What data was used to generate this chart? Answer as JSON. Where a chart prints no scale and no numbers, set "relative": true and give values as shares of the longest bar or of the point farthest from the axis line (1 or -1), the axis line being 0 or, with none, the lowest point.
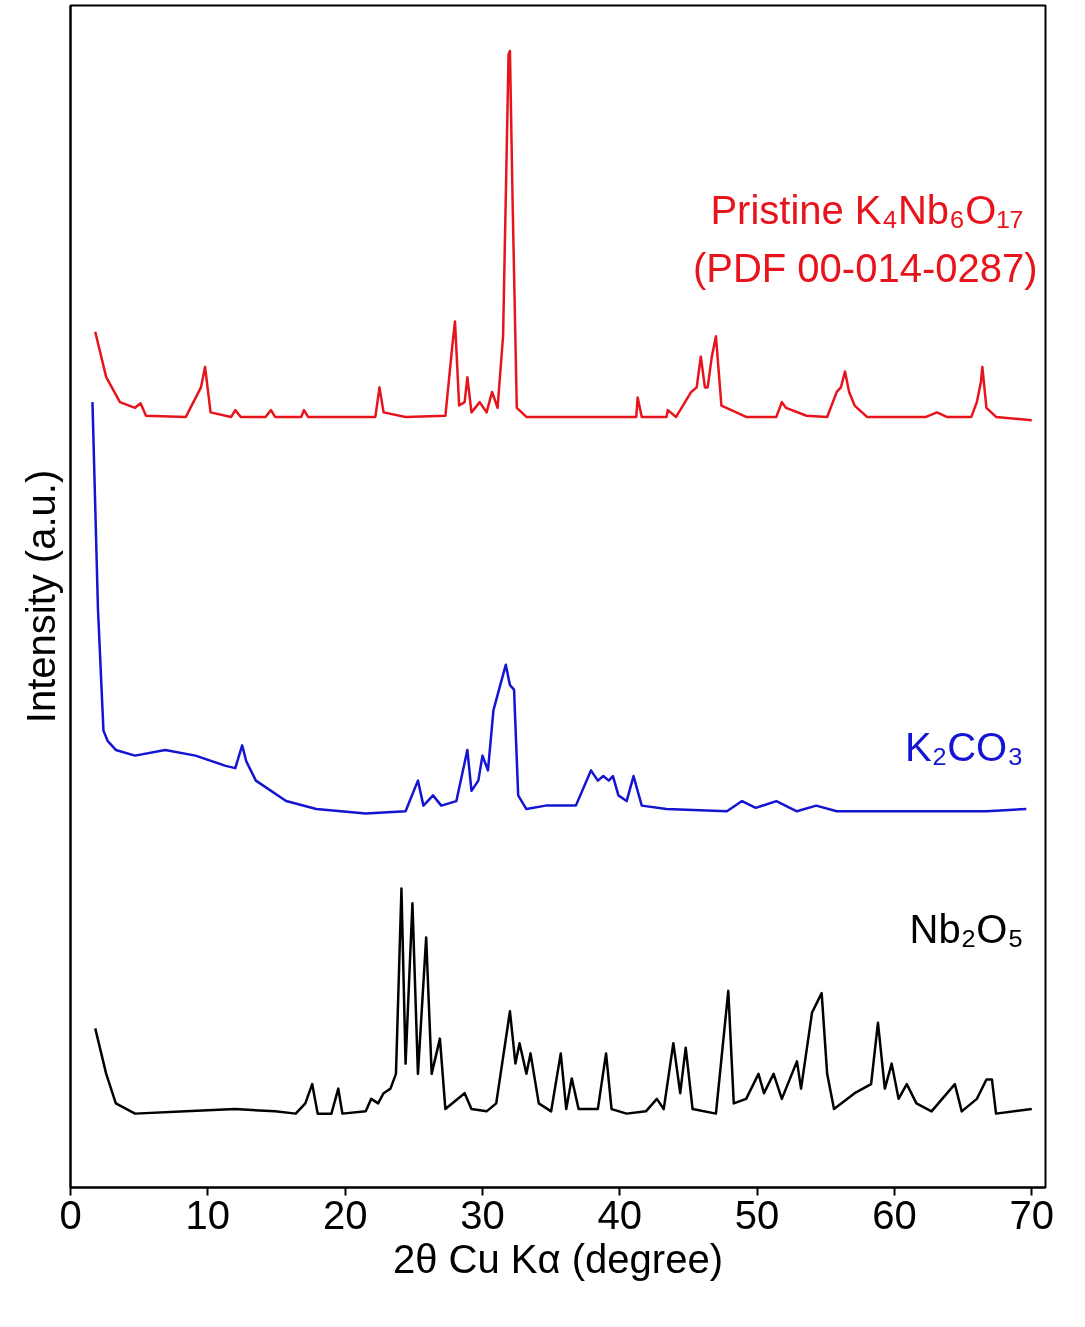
{
  "chart_data": {
    "type": "line",
    "relative": true,
    "xlabel": "2θ Cu Kα (degree)",
    "ylabel": "Intensity (a.u.)",
    "xlim": [
      0,
      71
    ],
    "xticks": [
      0,
      10,
      20,
      30,
      40,
      50,
      60,
      70
    ],
    "grid": false,
    "tick_labels": "x",
    "marker": "none",
    "line_style": "solid",
    "annotations": [
      "(PDF 00-014-0287)"
    ],
    "series": [
      {
        "name": "Pristine K₄Nb₆O₁₇",
        "color": "#e8141c",
        "x": [
          1.8,
          2.6,
          3.6,
          4.7,
          5.1,
          5.5,
          8.4,
          9.5,
          9.8,
          10.2,
          11.7,
          12.0,
          12.4,
          14.2,
          14.6,
          14.9,
          16.8,
          17.0,
          17.3,
          19.3,
          22.2,
          22.5,
          22.8,
          24.4,
          27.3,
          27.8,
          28.0,
          28.3,
          28.7,
          28.9,
          29.2,
          29.8,
          30.3,
          30.7,
          31.1,
          31.5,
          31.9,
          32.0,
          32.2,
          32.5,
          33.2,
          37.6,
          41.2,
          41.3,
          41.6,
          43.4,
          43.5,
          44.1,
          45.2,
          45.6,
          45.9,
          46.2,
          46.4,
          46.7,
          47.0,
          47.4,
          49.2,
          51.4,
          51.8,
          52.1,
          53.6,
          55.1,
          55.8,
          56.1,
          56.4,
          56.7,
          57.1,
          58.0,
          59.4,
          60.9,
          62.3,
          63.1,
          63.8,
          65.6,
          66.0,
          66.3,
          66.4,
          66.7,
          67.4,
          70.0
        ],
        "values": [
          0.753,
          0.713,
          0.691,
          0.686,
          0.69,
          0.679,
          0.678,
          0.704,
          0.722,
          0.682,
          0.678,
          0.684,
          0.678,
          0.678,
          0.684,
          0.678,
          0.678,
          0.684,
          0.678,
          0.678,
          0.678,
          0.704,
          0.682,
          0.678,
          0.679,
          0.74,
          0.762,
          0.688,
          0.691,
          0.713,
          0.682,
          0.691,
          0.682,
          0.7,
          0.686,
          0.749,
          0.997,
          1.0,
          0.864,
          0.686,
          0.678,
          0.678,
          0.678,
          0.695,
          0.678,
          0.678,
          0.684,
          0.678,
          0.7,
          0.704,
          0.731,
          0.704,
          0.704,
          0.731,
          0.749,
          0.688,
          0.678,
          0.678,
          0.691,
          0.686,
          0.679,
          0.678,
          0.7,
          0.704,
          0.718,
          0.7,
          0.688,
          0.678,
          0.678,
          0.678,
          0.678,
          0.682,
          0.678,
          0.678,
          0.691,
          0.709,
          0.722,
          0.686,
          0.678,
          0.675
        ]
      },
      {
        "name": "K₂CO₃",
        "color": "#1414d2",
        "x": [
          1.6,
          2.0,
          2.4,
          2.7,
          3.3,
          4.7,
          6.9,
          9.1,
          11.3,
          12.0,
          12.5,
          12.8,
          13.5,
          15.7,
          17.9,
          21.5,
          24.4,
          25.3,
          25.7,
          26.4,
          27.0,
          28.1,
          28.9,
          29.2,
          29.7,
          30.0,
          30.4,
          30.8,
          31.7,
          32.0,
          32.3,
          32.6,
          33.2,
          34.6,
          36.8,
          37.9,
          38.4,
          38.8,
          39.2,
          39.5,
          39.9,
          40.5,
          41.0,
          41.6,
          43.4,
          47.8,
          48.9,
          49.9,
          51.4,
          52.9,
          54.3,
          55.8,
          66.7,
          69.6
        ],
        "values": [
          0.691,
          0.509,
          0.402,
          0.393,
          0.385,
          0.38,
          0.385,
          0.38,
          0.371,
          0.369,
          0.389,
          0.375,
          0.358,
          0.34,
          0.333,
          0.329,
          0.331,
          0.358,
          0.336,
          0.345,
          0.336,
          0.34,
          0.385,
          0.349,
          0.358,
          0.38,
          0.367,
          0.42,
          0.46,
          0.442,
          0.438,
          0.345,
          0.333,
          0.336,
          0.336,
          0.367,
          0.358,
          0.362,
          0.358,
          0.362,
          0.345,
          0.34,
          0.362,
          0.336,
          0.333,
          0.331,
          0.34,
          0.334,
          0.34,
          0.331,
          0.336,
          0.331,
          0.331,
          0.333
        ]
      },
      {
        "name": "Nb₂O₅",
        "color": "#000000",
        "x": [
          1.8,
          2.6,
          3.3,
          4.7,
          8.4,
          12.0,
          14.9,
          16.4,
          17.1,
          17.6,
          18.0,
          19.0,
          19.5,
          19.8,
          21.5,
          21.9,
          22.4,
          22.8,
          23.3,
          23.7,
          24.1,
          24.4,
          24.9,
          25.3,
          25.9,
          26.3,
          26.9,
          27.3,
          28.7,
          29.2,
          30.3,
          31.0,
          32.0,
          32.4,
          32.7,
          33.2,
          33.5,
          34.1,
          35.0,
          35.7,
          36.1,
          36.5,
          37.0,
          38.4,
          39.0,
          39.4,
          40.5,
          41.9,
          42.7,
          43.2,
          43.9,
          44.4,
          44.8,
          45.3,
          47.0,
          47.9,
          48.3,
          49.2,
          50.1,
          50.5,
          51.2,
          51.8,
          52.9,
          53.2,
          54.0,
          54.7,
          55.1,
          55.6,
          57.1,
          58.3,
          58.8,
          59.3,
          59.8,
          60.3,
          60.9,
          61.6,
          62.7,
          64.4,
          64.9,
          66.0,
          66.7,
          67.1,
          67.4,
          70.0
        ],
        "values": [
          0.14,
          0.1,
          0.074,
          0.065,
          0.067,
          0.069,
          0.067,
          0.065,
          0.074,
          0.091,
          0.065,
          0.065,
          0.087,
          0.065,
          0.067,
          0.078,
          0.074,
          0.083,
          0.087,
          0.1,
          0.263,
          0.109,
          0.25,
          0.1,
          0.22,
          0.1,
          0.131,
          0.069,
          0.083,
          0.069,
          0.067,
          0.074,
          0.155,
          0.109,
          0.127,
          0.1,
          0.118,
          0.074,
          0.067,
          0.118,
          0.069,
          0.096,
          0.069,
          0.069,
          0.118,
          0.069,
          0.065,
          0.067,
          0.078,
          0.069,
          0.127,
          0.083,
          0.123,
          0.069,
          0.065,
          0.173,
          0.074,
          0.078,
          0.1,
          0.083,
          0.1,
          0.078,
          0.111,
          0.087,
          0.154,
          0.171,
          0.1,
          0.069,
          0.083,
          0.091,
          0.145,
          0.087,
          0.109,
          0.078,
          0.091,
          0.074,
          0.067,
          0.091,
          0.067,
          0.078,
          0.095,
          0.095,
          0.065,
          0.069
        ]
      }
    ]
  }
}
